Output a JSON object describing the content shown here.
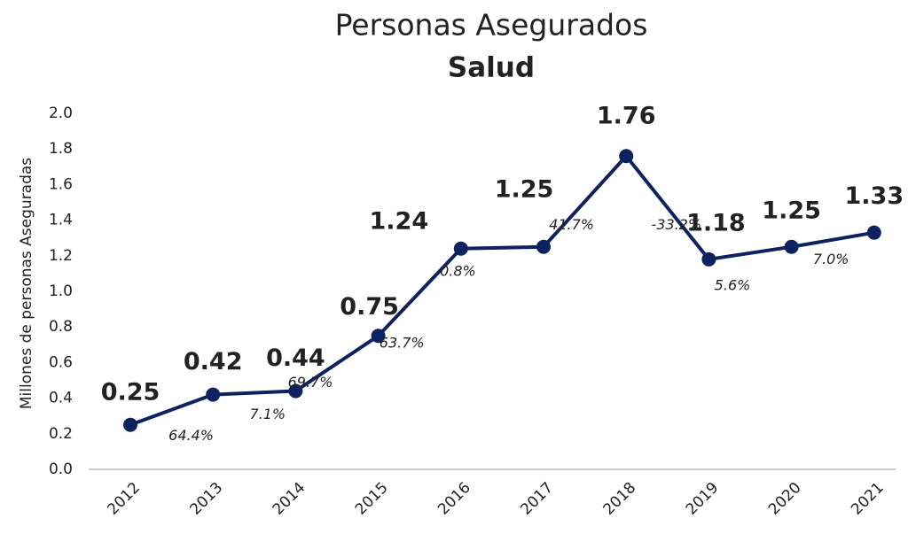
{
  "chart_data": {
    "type": "line",
    "title": "Personas Asegurados",
    "subtitle": "Salud",
    "ylabel": "Millones de personas Aseguradas",
    "categories": [
      "2012",
      "2013",
      "2014",
      "2015",
      "2016",
      "2017",
      "2018",
      "2019",
      "2020",
      "2021"
    ],
    "series": [
      {
        "name": "Salud",
        "color": "#0d2260",
        "values": [
          0.25,
          0.42,
          0.44,
          0.75,
          1.24,
          1.25,
          1.76,
          1.18,
          1.25,
          1.33
        ]
      }
    ],
    "annotations": [
      "64.4%",
      "7.1%",
      "69.7%",
      "63.7%",
      "0.8%",
      "41.7%",
      "-33.2%",
      "5.6%",
      "7.0%"
    ],
    "ylim": [
      0,
      2
    ],
    "yticks": [
      {
        "value": 0,
        "label": "0.0"
      },
      0.2,
      0.4,
      0.6,
      0.8,
      {
        "value": 1,
        "label": "1.0"
      },
      1.2,
      1.4,
      1.6,
      1.8,
      {
        "value": 2,
        "label": "2.0"
      }
    ]
  }
}
